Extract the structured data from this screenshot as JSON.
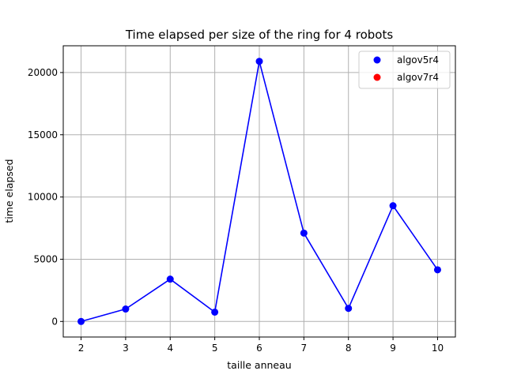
{
  "chart_data": {
    "type": "scatter",
    "title": "Time elapsed per size of the ring for 4 robots",
    "xlabel": "taille anneau",
    "ylabel": "time elapsed",
    "x": [
      2,
      3,
      4,
      5,
      6,
      7,
      8,
      9,
      10
    ],
    "xlim": [
      1.6,
      10.4
    ],
    "ylim": [
      -1250,
      22150
    ],
    "x_ticks": [
      "2",
      "3",
      "4",
      "5",
      "6",
      "7",
      "8",
      "9",
      "10"
    ],
    "y_ticks": [
      "0",
      "5000",
      "10000",
      "15000",
      "20000"
    ],
    "grid": true,
    "legend_position": "top-right",
    "series": [
      {
        "name": "algov5r4",
        "color": "#0000ff",
        "connected": true,
        "values": [
          0,
          1000,
          3400,
          750,
          20900,
          7100,
          1050,
          9300,
          4150
        ]
      },
      {
        "name": "algov7r4",
        "color": "#ff0000",
        "connected": false,
        "values": []
      }
    ]
  }
}
